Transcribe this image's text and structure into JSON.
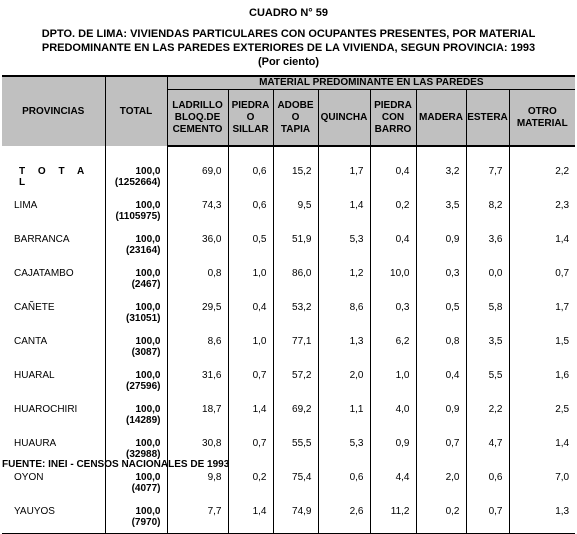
{
  "title": {
    "cuadro": "CUADRO N° 59",
    "line1": "DPTO. DE LIMA: VIVIENDAS PARTICULARES CON OCUPANTES PRESENTES, POR MATERIAL",
    "line2": "PREDOMINANTE EN LAS PAREDES EXTERIORES DE LA VIVIENDA, SEGUN PROVINCIA: 1993",
    "line3": "(Por ciento)"
  },
  "header": {
    "provincias": "PROVINCIAS",
    "total": "TOTAL",
    "group": "MATERIAL PREDOMINANTE EN LAS PAREDES",
    "columns": [
      [
        "LADRILLO",
        "BLOQ.DE",
        "CEMENTO"
      ],
      [
        "PIEDRA",
        "O",
        "SILLAR"
      ],
      [
        "ADOBE",
        "O",
        "TAPIA"
      ],
      [
        "QUINCHA"
      ],
      [
        "PIEDRA",
        "CON",
        "BARRO"
      ],
      [
        "MADERA"
      ],
      [
        "ESTERA"
      ],
      [
        "OTRO",
        "MATERIAL"
      ]
    ]
  },
  "rows": [
    {
      "name": "T O T A L",
      "pct": "100,0",
      "count": "(1252664)",
      "values": [
        "69,0",
        "0,6",
        "15,2",
        "1,7",
        "0,4",
        "3,2",
        "7,7",
        "2,2"
      ]
    },
    {
      "name": "LIMA",
      "pct": "100,0",
      "count": "(1105975)",
      "values": [
        "74,3",
        "0,6",
        "9,5",
        "1,4",
        "0,2",
        "3,5",
        "8,2",
        "2,3"
      ]
    },
    {
      "name": "BARRANCA",
      "pct": "100,0",
      "count": "(23164)",
      "values": [
        "36,0",
        "0,5",
        "51,9",
        "5,3",
        "0,4",
        "0,9",
        "3,6",
        "1,4"
      ]
    },
    {
      "name": "CAJATAMBO",
      "pct": "100,0",
      "count": "(2467)",
      "values": [
        "0,8",
        "1,0",
        "86,0",
        "1,2",
        "10,0",
        "0,3",
        "0,0",
        "0,7"
      ]
    },
    {
      "name": "CAÑETE",
      "pct": "100,0",
      "count": "(31051)",
      "values": [
        "29,5",
        "0,4",
        "53,2",
        "8,6",
        "0,3",
        "0,5",
        "5,8",
        "1,7"
      ]
    },
    {
      "name": "CANTA",
      "pct": "100,0",
      "count": "(3087)",
      "values": [
        "8,6",
        "1,0",
        "77,1",
        "1,3",
        "6,2",
        "0,8",
        "3,5",
        "1,5"
      ]
    },
    {
      "name": "HUARAL",
      "pct": "100,0",
      "count": "(27596)",
      "values": [
        "31,6",
        "0,7",
        "57,2",
        "2,0",
        "1,0",
        "0,4",
        "5,5",
        "1,6"
      ]
    },
    {
      "name": "HUAROCHIRI",
      "pct": "100,0",
      "count": "(14289)",
      "values": [
        "18,7",
        "1,4",
        "69,2",
        "1,1",
        "4,0",
        "0,9",
        "2,2",
        "2,5"
      ]
    },
    {
      "name": "HUAURA",
      "pct": "100,0",
      "count": "(32988)",
      "values": [
        "30,8",
        "0,7",
        "55,5",
        "5,3",
        "0,9",
        "0,7",
        "4,7",
        "1,4"
      ]
    },
    {
      "name": "OYON",
      "pct": "100,0",
      "count": "(4077)",
      "values": [
        "9,8",
        "0,2",
        "75,4",
        "0,6",
        "4,4",
        "2,0",
        "0,6",
        "7,0"
      ]
    },
    {
      "name": "YAUYOS",
      "pct": "100,0",
      "count": "(7970)",
      "values": [
        "7,7",
        "1,4",
        "74,9",
        "2,6",
        "11,2",
        "0,2",
        "0,7",
        "1,3"
      ]
    }
  ],
  "footer": "FUENTE: INEI - CENSOS NACIONALES DE 1993"
}
